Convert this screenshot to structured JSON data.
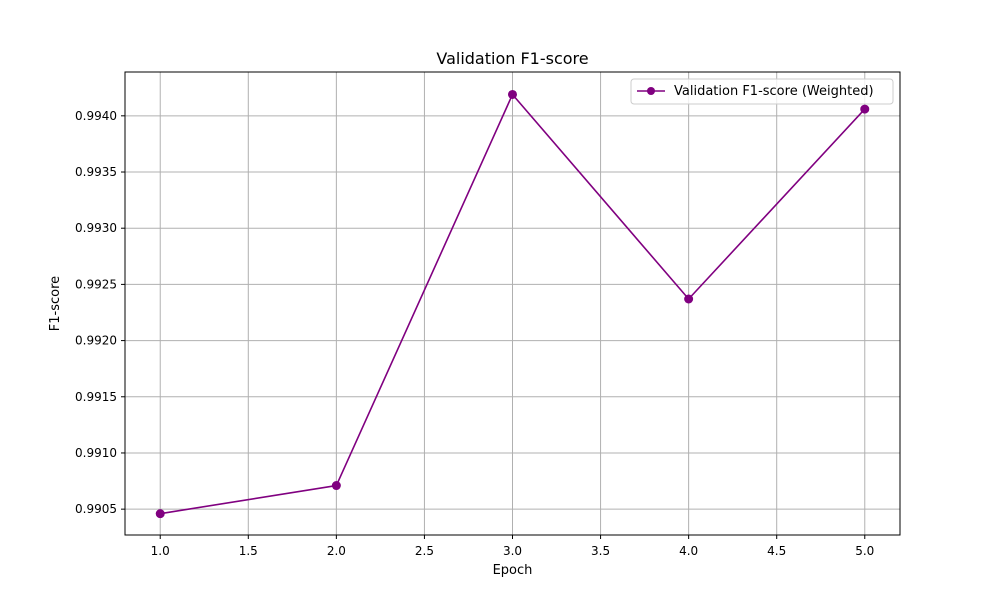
{
  "chart_data": {
    "type": "line",
    "title": "Validation F1-score",
    "xlabel": "Epoch",
    "ylabel": "F1-score",
    "xlim": [
      0.8,
      5.2
    ],
    "ylim": [
      0.99027,
      0.99439
    ],
    "x_ticks": [
      1.0,
      1.5,
      2.0,
      2.5,
      3.0,
      3.5,
      4.0,
      4.5,
      5.0
    ],
    "x_tick_labels": [
      "1.0",
      "1.5",
      "2.0",
      "2.5",
      "3.0",
      "3.5",
      "4.0",
      "4.5",
      "5.0"
    ],
    "y_ticks": [
      0.9905,
      0.991,
      0.9915,
      0.992,
      0.9925,
      0.993,
      0.9935,
      0.994
    ],
    "y_tick_labels": [
      "0.9905",
      "0.9910",
      "0.9915",
      "0.9920",
      "0.9925",
      "0.9930",
      "0.9935",
      "0.9940"
    ],
    "grid": true,
    "legend_position": "top-right",
    "series": [
      {
        "name": "Validation F1-score (Weighted)",
        "color": "#800080",
        "marker": "circle",
        "x": [
          1,
          2,
          3,
          4,
          5
        ],
        "y": [
          0.99046,
          0.99071,
          0.99419,
          0.99237,
          0.99406
        ]
      }
    ]
  }
}
